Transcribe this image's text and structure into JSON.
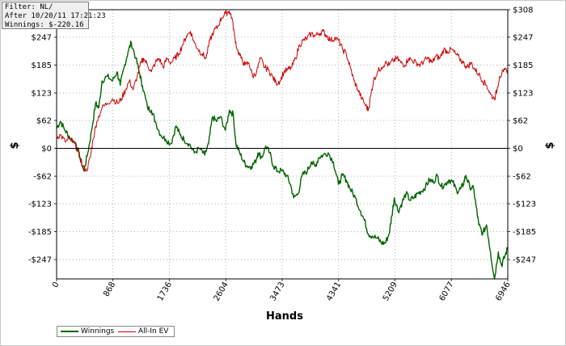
{
  "info_box": {
    "filter": "Filter: NL/",
    "after": "After 10/20/11 17:21:23",
    "winnings": "Winnings: $-220.16"
  },
  "chart_data": {
    "type": "line",
    "xlabel": "Hands",
    "ylabel": "$",
    "xlim": [
      0,
      6946
    ],
    "ylim": [
      -290,
      308
    ],
    "x_ticks": [
      0,
      868,
      1736,
      2604,
      3473,
      4341,
      5209,
      6077,
      6946
    ],
    "y_ticks": [
      -247,
      -185,
      -123,
      -62,
      0,
      62,
      123,
      185,
      247,
      308
    ],
    "y_tick_labels": [
      "-$247",
      "-$185",
      "-$123",
      "-$62",
      "$0",
      "$62",
      "$123",
      "$185",
      "$247",
      "$308"
    ],
    "grid": true,
    "legend_position": "bottom-left",
    "series": [
      {
        "name": "Winnings",
        "color": "#006400",
        "points": [
          [
            0,
            45
          ],
          [
            60,
            60
          ],
          [
            130,
            40
          ],
          [
            200,
            25
          ],
          [
            300,
            10
          ],
          [
            360,
            -20
          ],
          [
            420,
            -50
          ],
          [
            480,
            -10
          ],
          [
            540,
            40
          ],
          [
            600,
            100
          ],
          [
            650,
            90
          ],
          [
            700,
            150
          ],
          [
            780,
            160
          ],
          [
            860,
            150
          ],
          [
            930,
            170
          ],
          [
            980,
            140
          ],
          [
            1040,
            180
          ],
          [
            1100,
            215
          ],
          [
            1150,
            235
          ],
          [
            1220,
            200
          ],
          [
            1280,
            165
          ],
          [
            1320,
            140
          ],
          [
            1400,
            90
          ],
          [
            1460,
            85
          ],
          [
            1520,
            60
          ],
          [
            1600,
            30
          ],
          [
            1680,
            20
          ],
          [
            1760,
            10
          ],
          [
            1840,
            50
          ],
          [
            1900,
            30
          ],
          [
            1960,
            20
          ],
          [
            2040,
            10
          ],
          [
            2120,
            -10
          ],
          [
            2200,
            0
          ],
          [
            2280,
            -15
          ],
          [
            2340,
            10
          ],
          [
            2400,
            70
          ],
          [
            2460,
            60
          ],
          [
            2520,
            70
          ],
          [
            2600,
            40
          ],
          [
            2660,
            85
          ],
          [
            2720,
            75
          ],
          [
            2760,
            10
          ],
          [
            2820,
            -10
          ],
          [
            2880,
            -30
          ],
          [
            2940,
            -40
          ],
          [
            3000,
            -40
          ],
          [
            3060,
            -30
          ],
          [
            3100,
            -10
          ],
          [
            3160,
            -20
          ],
          [
            3220,
            5
          ],
          [
            3280,
            -10
          ],
          [
            3340,
            -40
          ],
          [
            3400,
            -50
          ],
          [
            3470,
            -50
          ],
          [
            3540,
            -60
          ],
          [
            3600,
            -80
          ],
          [
            3650,
            -110
          ],
          [
            3720,
            -100
          ],
          [
            3780,
            -60
          ],
          [
            3860,
            -50
          ],
          [
            3920,
            -30
          ],
          [
            3980,
            -40
          ],
          [
            4040,
            -20
          ],
          [
            4100,
            -15
          ],
          [
            4180,
            -10
          ],
          [
            4260,
            -30
          ],
          [
            4340,
            -80
          ],
          [
            4400,
            -60
          ],
          [
            4460,
            -70
          ],
          [
            4520,
            -90
          ],
          [
            4600,
            -110
          ],
          [
            4680,
            -140
          ],
          [
            4740,
            -160
          ],
          [
            4800,
            -190
          ],
          [
            4860,
            -195
          ],
          [
            4940,
            -200
          ],
          [
            5000,
            -210
          ],
          [
            5060,
            -210
          ],
          [
            5120,
            -190
          ],
          [
            5160,
            -150
          ],
          [
            5200,
            -110
          ],
          [
            5260,
            -140
          ],
          [
            5320,
            -120
          ],
          [
            5380,
            -100
          ],
          [
            5440,
            -115
          ],
          [
            5500,
            -110
          ],
          [
            5560,
            -100
          ],
          [
            5620,
            -95
          ],
          [
            5680,
            -85
          ],
          [
            5740,
            -70
          ],
          [
            5800,
            -75
          ],
          [
            5860,
            -60
          ],
          [
            5920,
            -85
          ],
          [
            5980,
            -80
          ],
          [
            6040,
            -70
          ],
          [
            6100,
            -75
          ],
          [
            6160,
            -95
          ],
          [
            6220,
            -90
          ],
          [
            6260,
            -80
          ],
          [
            6300,
            -60
          ],
          [
            6360,
            -85
          ],
          [
            6420,
            -90
          ],
          [
            6460,
            -130
          ],
          [
            6500,
            -170
          ],
          [
            6560,
            -190
          ],
          [
            6620,
            -170
          ],
          [
            6680,
            -230
          ],
          [
            6740,
            -290
          ],
          [
            6800,
            -230
          ],
          [
            6850,
            -260
          ],
          [
            6900,
            -240
          ],
          [
            6946,
            -220
          ]
        ]
      },
      {
        "name": "All-In EV",
        "color": "#cc0000",
        "points": [
          [
            0,
            25
          ],
          [
            60,
            30
          ],
          [
            130,
            15
          ],
          [
            200,
            20
          ],
          [
            280,
            10
          ],
          [
            340,
            -10
          ],
          [
            400,
            -40
          ],
          [
            460,
            -50
          ],
          [
            520,
            -20
          ],
          [
            560,
            20
          ],
          [
            620,
            60
          ],
          [
            700,
            90
          ],
          [
            780,
            100
          ],
          [
            860,
            110
          ],
          [
            940,
            100
          ],
          [
            1000,
            110
          ],
          [
            1060,
            130
          ],
          [
            1120,
            150
          ],
          [
            1180,
            130
          ],
          [
            1240,
            160
          ],
          [
            1300,
            190
          ],
          [
            1340,
            200
          ],
          [
            1400,
            185
          ],
          [
            1460,
            170
          ],
          [
            1520,
            190
          ],
          [
            1580,
            200
          ],
          [
            1640,
            180
          ],
          [
            1700,
            200
          ],
          [
            1760,
            190
          ],
          [
            1820,
            200
          ],
          [
            1880,
            210
          ],
          [
            1940,
            230
          ],
          [
            2000,
            250
          ],
          [
            2060,
            260
          ],
          [
            2120,
            235
          ],
          [
            2180,
            220
          ],
          [
            2240,
            210
          ],
          [
            2300,
            200
          ],
          [
            2360,
            240
          ],
          [
            2420,
            260
          ],
          [
            2480,
            270
          ],
          [
            2540,
            290
          ],
          [
            2600,
            300
          ],
          [
            2660,
            305
          ],
          [
            2700,
            290
          ],
          [
            2740,
            250
          ],
          [
            2780,
            220
          ],
          [
            2840,
            200
          ],
          [
            2900,
            185
          ],
          [
            2960,
            190
          ],
          [
            3020,
            160
          ],
          [
            3080,
            170
          ],
          [
            3140,
            200
          ],
          [
            3200,
            180
          ],
          [
            3260,
            175
          ],
          [
            3320,
            160
          ],
          [
            3380,
            145
          ],
          [
            3440,
            150
          ],
          [
            3500,
            170
          ],
          [
            3560,
            175
          ],
          [
            3620,
            180
          ],
          [
            3680,
            200
          ],
          [
            3740,
            230
          ],
          [
            3800,
            240
          ],
          [
            3860,
            245
          ],
          [
            3920,
            255
          ],
          [
            3980,
            250
          ],
          [
            4040,
            255
          ],
          [
            4100,
            260
          ],
          [
            4160,
            250
          ],
          [
            4220,
            240
          ],
          [
            4280,
            245
          ],
          [
            4340,
            240
          ],
          [
            4400,
            220
          ],
          [
            4460,
            210
          ],
          [
            4520,
            180
          ],
          [
            4580,
            150
          ],
          [
            4640,
            130
          ],
          [
            4700,
            110
          ],
          [
            4760,
            95
          ],
          [
            4800,
            85
          ],
          [
            4840,
            120
          ],
          [
            4880,
            150
          ],
          [
            4940,
            170
          ],
          [
            5000,
            180
          ],
          [
            5060,
            190
          ],
          [
            5120,
            185
          ],
          [
            5180,
            195
          ],
          [
            5240,
            200
          ],
          [
            5300,
            190
          ],
          [
            5360,
            185
          ],
          [
            5420,
            200
          ],
          [
            5480,
            195
          ],
          [
            5540,
            190
          ],
          [
            5600,
            185
          ],
          [
            5660,
            195
          ],
          [
            5720,
            200
          ],
          [
            5780,
            190
          ],
          [
            5840,
            205
          ],
          [
            5900,
            200
          ],
          [
            5960,
            220
          ],
          [
            6020,
            215
          ],
          [
            6080,
            220
          ],
          [
            6140,
            210
          ],
          [
            6200,
            200
          ],
          [
            6260,
            190
          ],
          [
            6320,
            180
          ],
          [
            6380,
            190
          ],
          [
            6440,
            175
          ],
          [
            6500,
            165
          ],
          [
            6560,
            150
          ],
          [
            6620,
            140
          ],
          [
            6680,
            120
          ],
          [
            6740,
            110
          ],
          [
            6780,
            130
          ],
          [
            6820,
            160
          ],
          [
            6880,
            170
          ],
          [
            6946,
            175
          ]
        ]
      }
    ]
  }
}
